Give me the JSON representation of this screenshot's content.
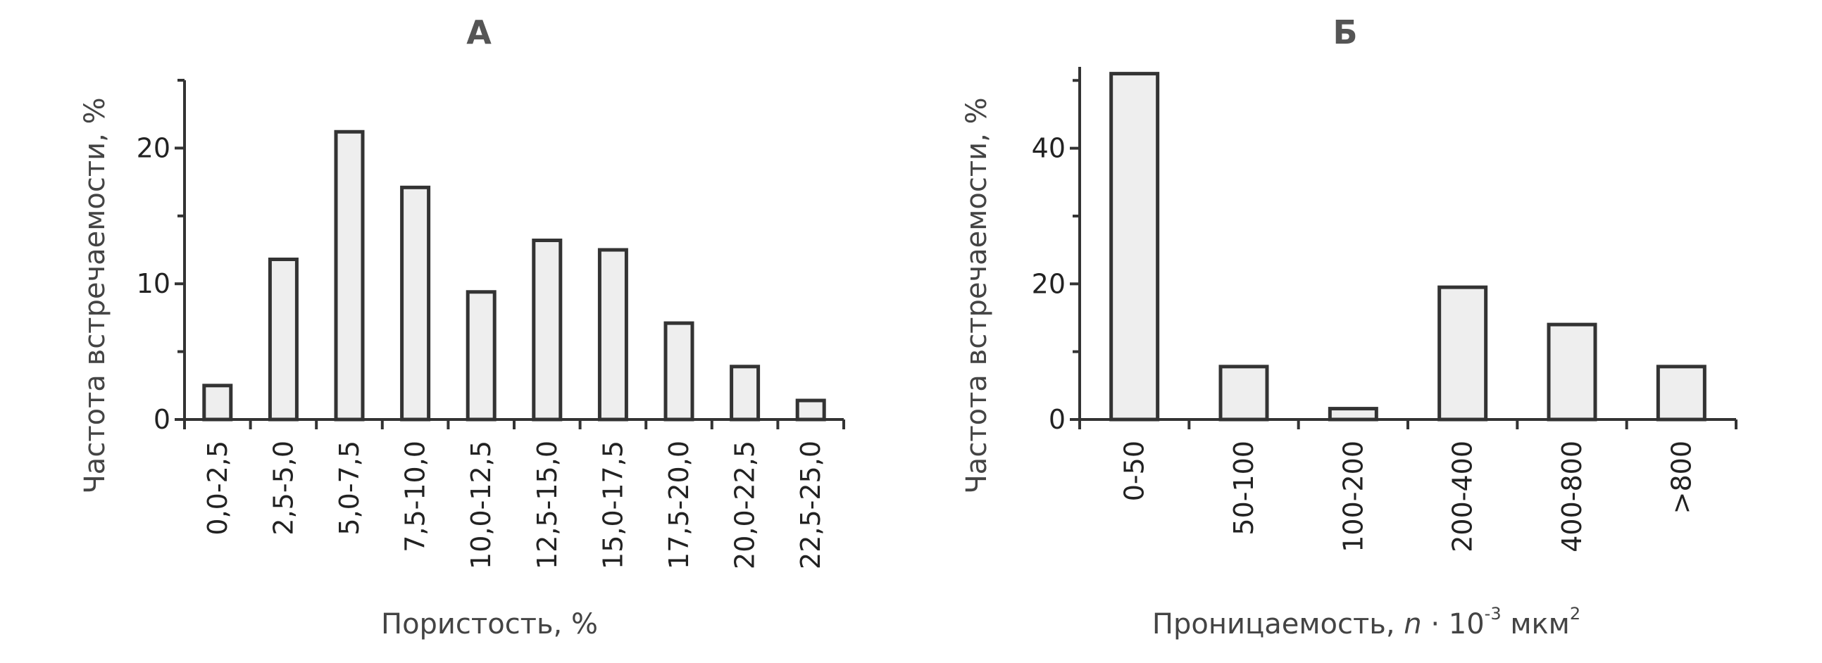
{
  "chart_data": [
    {
      "type": "bar",
      "title": "А",
      "xlabel": "Пористость, %",
      "ylabel": "Частота встречаемости, %",
      "ylim": [
        0,
        25
      ],
      "yticks": [
        0,
        10,
        20
      ],
      "categories": [
        "0,0-2,5",
        "2,5-5,0",
        "5,0-7,5",
        "7,5-10,0",
        "10,0-12,5",
        "12,5-15,0",
        "15,0-17,5",
        "17,5-20,0",
        "20,0-22,5",
        "22,5-25,0"
      ],
      "values": [
        2.5,
        11.8,
        21.2,
        17.1,
        9.4,
        13.2,
        12.5,
        7.1,
        3.9,
        1.4
      ],
      "grid": false
    },
    {
      "type": "bar",
      "title": "Б",
      "xlabel_main": "Проницаемость, ",
      "xlabel_var": "n",
      "xlabel_mid": " · 10",
      "xlabel_exp": "-3",
      "xlabel_unit": " мкм",
      "xlabel_unit_exp": "2",
      "ylabel": "Частота встречаемости, %",
      "ylim": [
        0,
        52
      ],
      "yticks": [
        0,
        20,
        40
      ],
      "categories": [
        "0-50",
        "50-100",
        "100-200",
        "200-400",
        "400-800",
        ">800"
      ],
      "values": [
        51,
        7.8,
        1.6,
        19.5,
        14.0,
        7.8
      ],
      "grid": false
    }
  ]
}
